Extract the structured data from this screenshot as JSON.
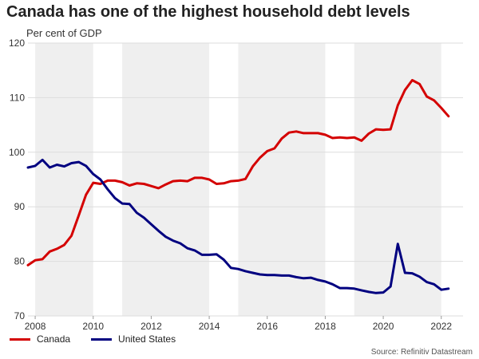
{
  "title": "Canada has one of the highest household debt levels",
  "subtitle": "Per cent of GDP",
  "source": "Source: Refinitiv Datastream",
  "colors": {
    "canada": "#d40000",
    "us": "#000080",
    "shade": "#efefef",
    "grid": "#dddddd"
  },
  "chart_data": {
    "type": "line",
    "title": "Canada has one of the highest household debt levels",
    "ylabel": "Per cent of GDP",
    "xlim": [
      2007.75,
      2022.75
    ],
    "ylim": [
      70,
      120
    ],
    "yticks": [
      70,
      80,
      90,
      100,
      110,
      120
    ],
    "xticks": [
      2008,
      2010,
      2012,
      2014,
      2016,
      2018,
      2020,
      2022
    ],
    "shaded_years": [
      2008,
      2010,
      2011,
      2014,
      2015,
      2018,
      2019,
      2022
    ],
    "grid": true,
    "legend": "bottom-left",
    "series": [
      {
        "name": "Canada",
        "color": "#d40000",
        "x": [
          2007.75,
          2008.0,
          2008.25,
          2008.5,
          2008.75,
          2009.0,
          2009.25,
          2009.5,
          2009.75,
          2010.0,
          2010.25,
          2010.5,
          2010.75,
          2011.0,
          2011.25,
          2011.5,
          2011.75,
          2012.0,
          2012.25,
          2012.5,
          2012.75,
          2013.0,
          2013.25,
          2013.5,
          2013.75,
          2014.0,
          2014.25,
          2014.5,
          2014.75,
          2015.0,
          2015.25,
          2015.5,
          2015.75,
          2016.0,
          2016.25,
          2016.5,
          2016.75,
          2017.0,
          2017.25,
          2017.5,
          2017.75,
          2018.0,
          2018.25,
          2018.5,
          2018.75,
          2019.0,
          2019.25,
          2019.5,
          2019.75,
          2020.0,
          2020.25,
          2020.5,
          2020.75,
          2021.0,
          2021.25,
          2021.5,
          2021.75,
          2022.0,
          2022.25
        ],
        "values": [
          79.3,
          80.2,
          80.4,
          81.8,
          82.3,
          83.0,
          84.7,
          88.4,
          92.2,
          94.4,
          94.2,
          94.8,
          94.8,
          94.5,
          93.9,
          94.3,
          94.2,
          93.8,
          93.4,
          94.1,
          94.7,
          94.8,
          94.7,
          95.3,
          95.3,
          95.0,
          94.2,
          94.3,
          94.7,
          94.8,
          95.1,
          97.4,
          99.0,
          100.2,
          100.7,
          102.5,
          103.6,
          103.8,
          103.5,
          103.5,
          103.5,
          103.2,
          102.6,
          102.7,
          102.6,
          102.7,
          102.1,
          103.4,
          104.2,
          104.1,
          104.2,
          108.6,
          111.4,
          113.2,
          112.5,
          110.2,
          109.5,
          108.1,
          106.6
        ]
      },
      {
        "name": "United States",
        "color": "#000080",
        "x": [
          2007.75,
          2008.0,
          2008.25,
          2008.5,
          2008.75,
          2009.0,
          2009.25,
          2009.5,
          2009.75,
          2010.0,
          2010.25,
          2010.5,
          2010.75,
          2011.0,
          2011.25,
          2011.5,
          2011.75,
          2012.0,
          2012.25,
          2012.5,
          2012.75,
          2013.0,
          2013.25,
          2013.5,
          2013.75,
          2014.0,
          2014.25,
          2014.5,
          2014.75,
          2015.0,
          2015.25,
          2015.5,
          2015.75,
          2016.0,
          2016.25,
          2016.5,
          2016.75,
          2017.0,
          2017.25,
          2017.5,
          2017.75,
          2018.0,
          2018.25,
          2018.5,
          2018.75,
          2019.0,
          2019.25,
          2019.5,
          2019.75,
          2020.0,
          2020.25,
          2020.5,
          2020.75,
          2021.0,
          2021.25,
          2021.5,
          2021.75,
          2022.0,
          2022.25
        ],
        "values": [
          97.2,
          97.5,
          98.6,
          97.2,
          97.7,
          97.4,
          98.0,
          98.2,
          97.5,
          96.0,
          95.0,
          93.2,
          91.6,
          90.6,
          90.5,
          88.9,
          88.0,
          86.8,
          85.6,
          84.5,
          83.8,
          83.3,
          82.4,
          82.0,
          81.2,
          81.2,
          81.3,
          80.3,
          78.8,
          78.6,
          78.2,
          77.9,
          77.6,
          77.5,
          77.5,
          77.4,
          77.4,
          77.1,
          76.9,
          77.0,
          76.6,
          76.3,
          75.8,
          75.1,
          75.1,
          75.0,
          74.7,
          74.4,
          74.2,
          74.3,
          75.4,
          83.2,
          77.9,
          77.8,
          77.2,
          76.2,
          75.8,
          74.8,
          75.0
        ]
      }
    ]
  }
}
